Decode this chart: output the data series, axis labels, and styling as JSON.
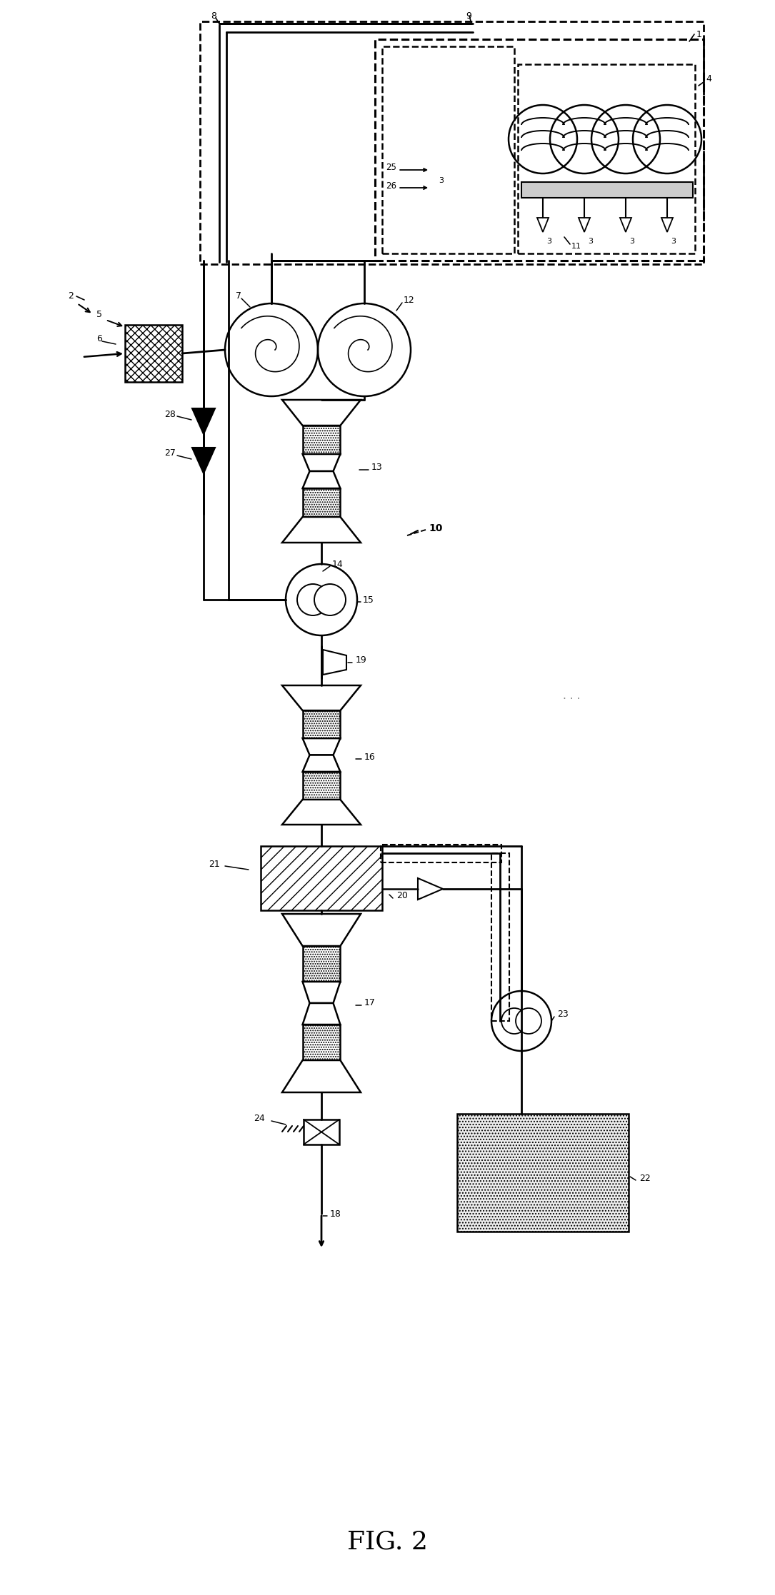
{
  "title": "FIG. 2",
  "bg_color": "#ffffff",
  "line_color": "#000000",
  "fig_width": 10.85,
  "fig_height": 22.34,
  "dpi": 100
}
